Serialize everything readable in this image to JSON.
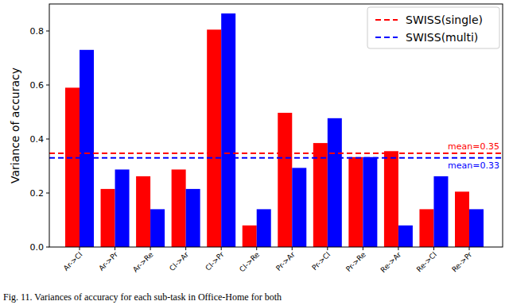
{
  "chart_data": {
    "type": "bar",
    "y_label": "Variance of accuracy",
    "caption": "Fig. 11.  Variances of accuracy for each sub-task in Office-Home for both",
    "categories": [
      "Ar->Cl",
      "Ar->Pr",
      "Ar->Re",
      "Cl->Ar",
      "Cl->Pr",
      "Cl->Re",
      "Pr->Ar",
      "Pr->Cl",
      "Pr->Re",
      "Re->Ar",
      "Re->Cl",
      "Re->Pr"
    ],
    "series": [
      {
        "name": "SWISS(single)",
        "color": "#ff0000",
        "values": [
          0.59,
          0.215,
          0.262,
          0.287,
          0.805,
          0.08,
          0.497,
          0.385,
          0.333,
          0.355,
          0.14,
          0.205
        ],
        "mean": 0.347,
        "mean_label": "mean=0.35"
      },
      {
        "name": "SWISS(multi)",
        "color": "#0000ff",
        "values": [
          0.73,
          0.287,
          0.14,
          0.215,
          0.865,
          0.14,
          0.293,
          0.477,
          0.333,
          0.08,
          0.262,
          0.14
        ],
        "mean": 0.33,
        "mean_label": "mean=0.33"
      }
    ],
    "ylim": [
      0,
      0.9
    ],
    "yticks": [
      {
        "value": 0,
        "label": "0.0"
      },
      {
        "value": 0.2,
        "label": "0.2"
      },
      {
        "value": 0.4,
        "label": "0.4"
      },
      {
        "value": 0.6,
        "label": "0.6"
      },
      {
        "value": 0.8,
        "label": "0.8"
      }
    ],
    "legend": "upper right",
    "grid": false
  }
}
